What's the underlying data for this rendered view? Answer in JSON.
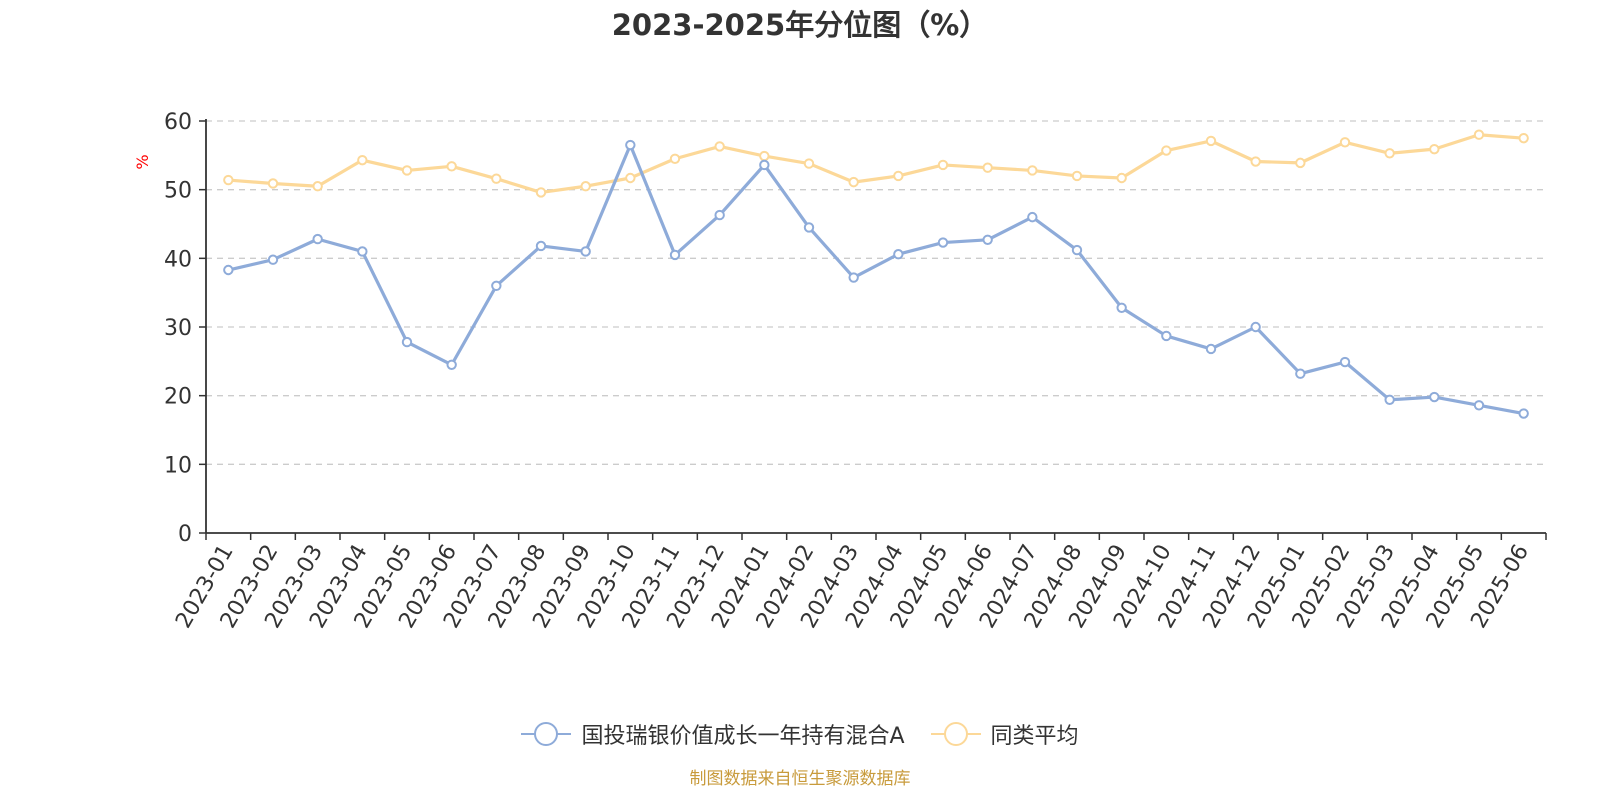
{
  "chart_data": {
    "type": "line",
    "title": "2023-2025年分位图（%）",
    "ylabel": "%",
    "ylim": [
      0,
      60
    ],
    "yticks": [
      0,
      10,
      20,
      30,
      40,
      50,
      60
    ],
    "grid": true,
    "legend_position": "bottom",
    "categories": [
      "2023-01",
      "2023-02",
      "2023-03",
      "2023-04",
      "2023-05",
      "2023-06",
      "2023-07",
      "2023-08",
      "2023-09",
      "2023-10",
      "2023-11",
      "2023-12",
      "2024-01",
      "2024-02",
      "2024-03",
      "2024-04",
      "2024-05",
      "2024-06",
      "2024-07",
      "2024-08",
      "2024-09",
      "2024-10",
      "2024-11",
      "2024-12",
      "2025-01",
      "2025-02",
      "2025-03",
      "2025-04",
      "2025-05",
      "2025-06"
    ],
    "series": [
      {
        "name": "国投瑞银价值成长一年持有混合A",
        "color": "#8eabd9",
        "values": [
          38.3,
          39.8,
          42.8,
          41.0,
          27.8,
          24.5,
          36.0,
          41.8,
          41.0,
          56.5,
          40.5,
          46.3,
          53.6,
          44.5,
          37.2,
          40.6,
          42.3,
          42.7,
          46.0,
          41.2,
          32.8,
          28.7,
          26.8,
          30.0,
          23.2,
          24.9,
          19.4,
          19.8,
          18.6,
          17.4
        ]
      },
      {
        "name": "同类平均",
        "color": "#fcd898",
        "values": [
          51.4,
          50.9,
          50.5,
          54.3,
          52.8,
          53.4,
          51.6,
          49.6,
          50.5,
          51.7,
          54.5,
          56.3,
          54.9,
          53.8,
          51.1,
          52.0,
          53.6,
          53.2,
          52.8,
          52.0,
          51.7,
          55.7,
          57.1,
          54.1,
          53.9,
          56.9,
          55.3,
          55.9,
          58.0,
          57.5
        ]
      }
    ]
  },
  "source_text": "制图数据来自恒生聚源数据库"
}
